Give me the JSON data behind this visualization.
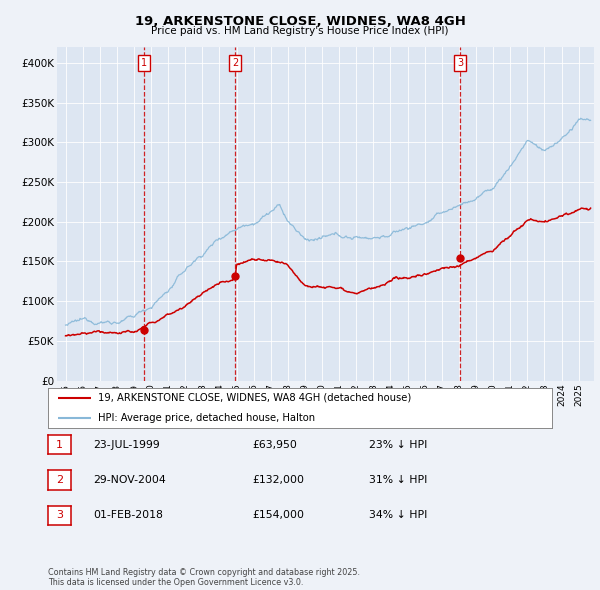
{
  "title": "19, ARKENSTONE CLOSE, WIDNES, WA8 4GH",
  "subtitle": "Price paid vs. HM Land Registry's House Price Index (HPI)",
  "background_color": "#eef2f8",
  "plot_bg_color": "#dde6f2",
  "legend_line1": "19, ARKENSTONE CLOSE, WIDNES, WA8 4GH (detached house)",
  "legend_line2": "HPI: Average price, detached house, Halton",
  "red_color": "#cc0000",
  "blue_color": "#88b8d8",
  "vline_dates": [
    1999.56,
    2004.91,
    2018.08
  ],
  "sale_dates": [
    1999.56,
    2004.91,
    2018.08
  ],
  "sale_values": [
    63950,
    132000,
    154000
  ],
  "table_rows": [
    {
      "num": "1",
      "date": "23-JUL-1999",
      "price": "£63,950",
      "hpi": "23% ↓ HPI"
    },
    {
      "num": "2",
      "date": "29-NOV-2004",
      "price": "£132,000",
      "hpi": "31% ↓ HPI"
    },
    {
      "num": "3",
      "date": "01-FEB-2018",
      "price": "£154,000",
      "hpi": "34% ↓ HPI"
    }
  ],
  "footer": "Contains HM Land Registry data © Crown copyright and database right 2025.\nThis data is licensed under the Open Government Licence v3.0.",
  "ylim": [
    0,
    420000
  ],
  "yticks": [
    0,
    50000,
    100000,
    150000,
    200000,
    250000,
    300000,
    350000,
    400000
  ],
  "ytick_labels": [
    "£0",
    "£50K",
    "£100K",
    "£150K",
    "£200K",
    "£250K",
    "£300K",
    "£350K",
    "£400K"
  ],
  "xlim_start": 1994.5,
  "xlim_end": 2025.9,
  "xticks": [
    1995,
    1996,
    1997,
    1998,
    1999,
    2000,
    2001,
    2002,
    2003,
    2004,
    2005,
    2006,
    2007,
    2008,
    2009,
    2010,
    2011,
    2012,
    2013,
    2014,
    2015,
    2016,
    2017,
    2018,
    2019,
    2020,
    2021,
    2022,
    2023,
    2024,
    2025
  ]
}
